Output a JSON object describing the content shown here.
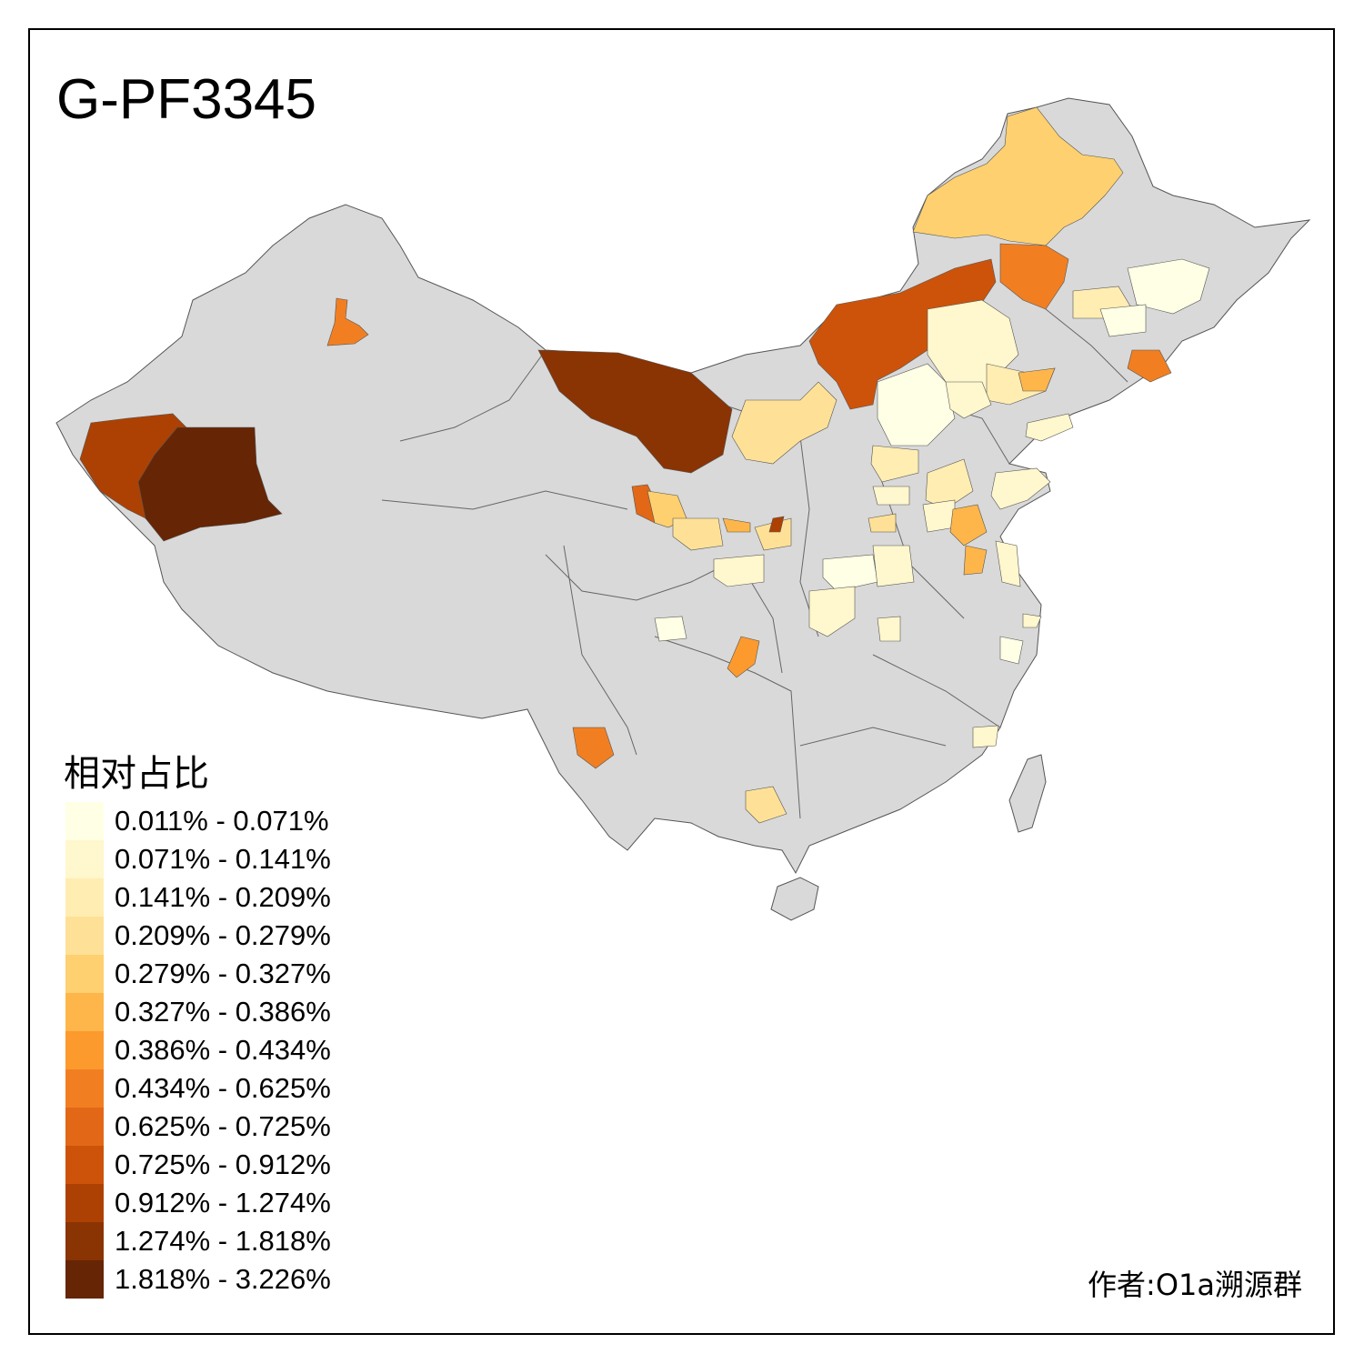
{
  "title": "G-PF3345",
  "legend": {
    "title": "相对占比",
    "items": [
      {
        "label": "0.011% - 0.071%",
        "color": "#FFFFE5"
      },
      {
        "label": "0.071% - 0.141%",
        "color": "#FFF7CD"
      },
      {
        "label": "0.141% - 0.209%",
        "color": "#FFEDB2"
      },
      {
        "label": "0.209% - 0.279%",
        "color": "#FEE197"
      },
      {
        "label": "0.279% - 0.327%",
        "color": "#FED06F"
      },
      {
        "label": "0.327% - 0.386%",
        "color": "#FEB64A"
      },
      {
        "label": "0.386% - 0.434%",
        "color": "#FC9A2E"
      },
      {
        "label": "0.434% - 0.625%",
        "color": "#F17F22"
      },
      {
        "label": "0.625% - 0.725%",
        "color": "#E26817"
      },
      {
        "label": "0.725% - 0.912%",
        "color": "#CD530A"
      },
      {
        "label": "0.912% - 1.274%",
        "color": "#AD4103"
      },
      {
        "label": "1.274% - 1.818%",
        "color": "#8A3303"
      },
      {
        "label": "1.818% - 3.226%",
        "color": "#662505"
      }
    ]
  },
  "author": "作者:O1a溯源群",
  "map_colors": {
    "base": "#D9D9D9",
    "border": "#555555",
    "no_data": "#D9D9D9"
  }
}
